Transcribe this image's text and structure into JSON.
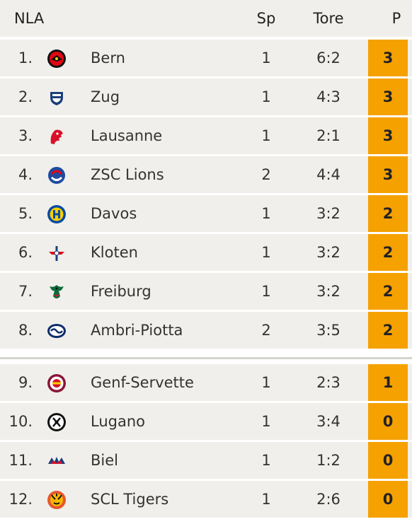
{
  "header": {
    "league": "NLA",
    "sp": "Sp",
    "tore": "Tore",
    "points": "P"
  },
  "colors": {
    "row_bg": "#f0efeb",
    "points_bg": "#f5a100",
    "separator": "#d4d3cf"
  },
  "rows": [
    {
      "rank": "1.",
      "team": "Bern",
      "sp": "1",
      "tore": "6:2",
      "points": "3",
      "logo": "bern-logo-icon"
    },
    {
      "rank": "2.",
      "team": "Zug",
      "sp": "1",
      "tore": "4:3",
      "points": "3",
      "logo": "zug-logo-icon"
    },
    {
      "rank": "3.",
      "team": "Lausanne",
      "sp": "1",
      "tore": "2:1",
      "points": "3",
      "logo": "lausanne-logo-icon"
    },
    {
      "rank": "4.",
      "team": "ZSC Lions",
      "sp": "2",
      "tore": "4:4",
      "points": "3",
      "logo": "zsc-lions-logo-icon"
    },
    {
      "rank": "5.",
      "team": "Davos",
      "sp": "1",
      "tore": "3:2",
      "points": "2",
      "logo": "davos-logo-icon"
    },
    {
      "rank": "6.",
      "team": "Kloten",
      "sp": "1",
      "tore": "3:2",
      "points": "2",
      "logo": "kloten-logo-icon"
    },
    {
      "rank": "7.",
      "team": "Freiburg",
      "sp": "1",
      "tore": "3:2",
      "points": "2",
      "logo": "freiburg-logo-icon"
    },
    {
      "rank": "8.",
      "team": "Ambri-Piotta",
      "sp": "2",
      "tore": "3:5",
      "points": "2",
      "logo": "ambri-piotta-logo-icon"
    },
    {
      "rank": "9.",
      "team": "Genf-Servette",
      "sp": "1",
      "tore": "2:3",
      "points": "1",
      "logo": "genf-servette-logo-icon"
    },
    {
      "rank": "10.",
      "team": "Lugano",
      "sp": "1",
      "tore": "3:4",
      "points": "0",
      "logo": "lugano-logo-icon"
    },
    {
      "rank": "11.",
      "team": "Biel",
      "sp": "1",
      "tore": "1:2",
      "points": "0",
      "logo": "biel-logo-icon"
    },
    {
      "rank": "12.",
      "team": "SCL Tigers",
      "sp": "1",
      "tore": "2:6",
      "points": "0",
      "logo": "scl-tigers-logo-icon"
    }
  ]
}
